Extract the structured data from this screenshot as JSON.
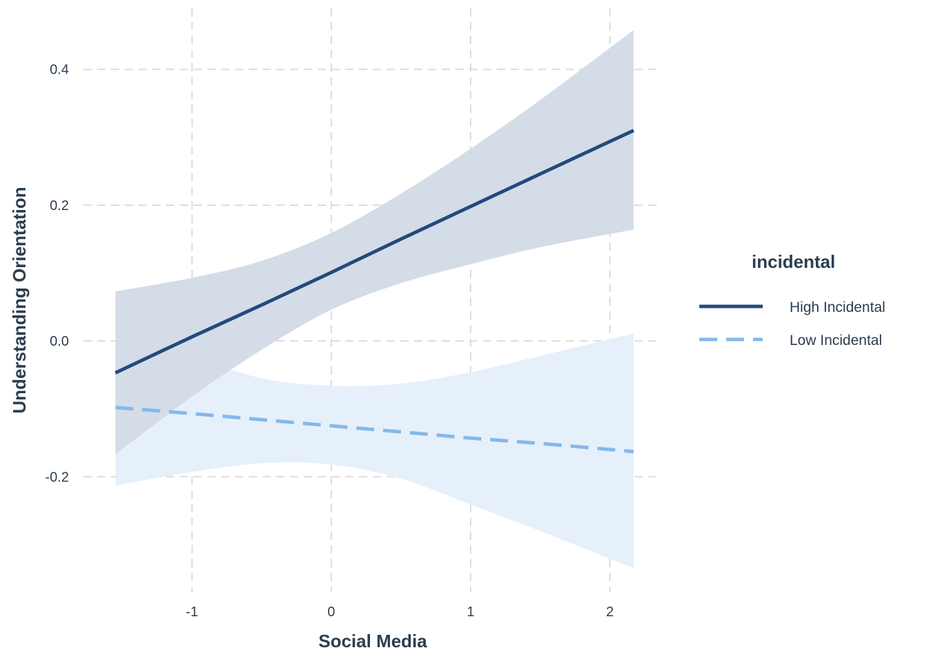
{
  "chart_data": {
    "type": "line",
    "title": "",
    "xlabel": "Social Media",
    "ylabel": "Understanding Orientation",
    "xlim": [
      -1.78,
      2.37
    ],
    "ylim": [
      -0.37,
      0.49
    ],
    "x_ticks": [
      -1,
      0,
      1,
      2
    ],
    "x_tick_labels": [
      "-1",
      "0",
      "1",
      "2"
    ],
    "y_ticks": [
      -0.2,
      0.0,
      0.2,
      0.4
    ],
    "y_tick_labels": [
      "-0.2",
      "0.0",
      "0.2",
      "0.4"
    ],
    "grid": true,
    "legend": {
      "title": "incidental",
      "position": "right"
    },
    "series": [
      {
        "name": "High Incidental",
        "line_style": "solid",
        "color": "#234a7c",
        "band_color": "#d2dae6",
        "x": [
          -1.55,
          -1.0,
          -0.5,
          0.0,
          0.5,
          1.0,
          1.5,
          2.17
        ],
        "y": [
          -0.047,
          0.006,
          0.053,
          0.101,
          0.15,
          0.198,
          0.246,
          0.31
        ],
        "lower": [
          -0.167,
          -0.082,
          -0.013,
          0.046,
          0.085,
          0.113,
          0.138,
          0.164
        ],
        "upper": [
          0.073,
          0.093,
          0.118,
          0.159,
          0.217,
          0.283,
          0.355,
          0.458
        ]
      },
      {
        "name": "Low Incidental",
        "line_style": "dashed",
        "color": "#85b8ea",
        "band_color": "#e6f0fb",
        "x": [
          -1.55,
          -1.0,
          -0.5,
          0.0,
          0.5,
          1.0,
          1.5,
          2.17
        ],
        "y": [
          -0.098,
          -0.107,
          -0.116,
          -0.125,
          -0.134,
          -0.143,
          -0.151,
          -0.163
        ],
        "lower": [
          -0.213,
          -0.193,
          -0.18,
          -0.182,
          -0.203,
          -0.241,
          -0.28,
          -0.335
        ],
        "upper": [
          0.017,
          -0.022,
          -0.055,
          -0.066,
          -0.063,
          -0.046,
          -0.022,
          0.011
        ]
      }
    ]
  }
}
